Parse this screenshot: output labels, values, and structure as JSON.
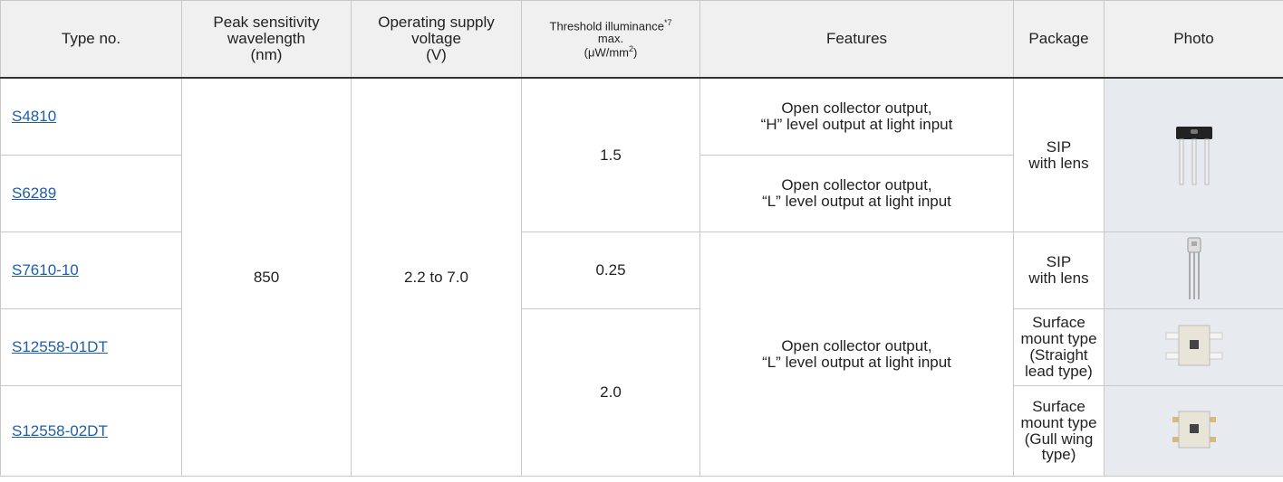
{
  "table": {
    "header": [
      [
        "Type no."
      ],
      [
        "Peak sensitivity",
        "wavelength",
        "(nm)"
      ],
      [
        "Operating supply",
        "voltage",
        "(V)"
      ],
      [
        "Features"
      ],
      [
        "Package"
      ],
      [
        "Photo"
      ]
    ],
    "threshold_header": {
      "title": "Threshold illuminance",
      "title_sup": "*7",
      "line2": "max.",
      "unit": "(μW/mm",
      "unit_sup": "2",
      "unit_end": ")"
    },
    "rows": [
      {
        "type_no": "S4810",
        "wavelength": "850",
        "voltage": "2.2 to 7.0",
        "threshold": "1.5",
        "features": [
          "Open collector output,",
          "“H” level output at light input"
        ],
        "package": [
          "SIP",
          "with lens"
        ]
      },
      {
        "type_no": "S6289",
        "features": [
          "Open collector output,",
          "“L” level output at light input"
        ]
      },
      {
        "type_no": "S7610-10",
        "threshold": "0.25",
        "features": [
          "Open collector output,",
          "“L” level output at light input"
        ],
        "package": [
          "SIP",
          "with lens"
        ]
      },
      {
        "type_no": "S12558-01DT",
        "threshold": "2.0",
        "package": [
          "Surface",
          "mount type",
          "(Straight",
          "lead type)"
        ]
      },
      {
        "type_no": "S12558-02DT",
        "package": [
          "Surface",
          "mount type",
          "(Gull wing",
          "type)"
        ]
      }
    ]
  }
}
